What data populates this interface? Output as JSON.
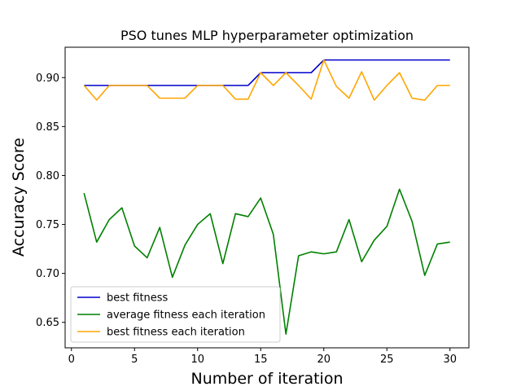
{
  "chart_data": {
    "type": "line",
    "title": "PSO tunes MLP hyperparameter optimization",
    "xlabel": "Number of iteration",
    "ylabel": "Accuracy Score",
    "xlim": [
      -0.5,
      31.5
    ],
    "ylim": [
      0.624,
      0.931
    ],
    "xticks": [
      0,
      5,
      10,
      15,
      20,
      25,
      30
    ],
    "yticks": [
      0.65,
      0.7,
      0.75,
      0.8,
      0.85,
      0.9
    ],
    "ytick_labels": [
      "0.65",
      "0.70",
      "0.75",
      "0.80",
      "0.85",
      "0.90"
    ],
    "legend_position": "lower-left",
    "grid": false,
    "x": [
      1,
      2,
      3,
      4,
      5,
      6,
      7,
      8,
      9,
      10,
      11,
      12,
      13,
      14,
      15,
      16,
      17,
      18,
      19,
      20,
      21,
      22,
      23,
      24,
      25,
      26,
      27,
      28,
      29,
      30
    ],
    "series": [
      {
        "name": "best fitness",
        "color": "#0000cc",
        "values": [
          0.892,
          0.892,
          0.892,
          0.892,
          0.892,
          0.892,
          0.892,
          0.892,
          0.892,
          0.892,
          0.892,
          0.892,
          0.892,
          0.892,
          0.905,
          0.905,
          0.905,
          0.905,
          0.905,
          0.918,
          0.918,
          0.918,
          0.918,
          0.918,
          0.918,
          0.918,
          0.918,
          0.918,
          0.918,
          0.918
        ]
      },
      {
        "name": "average fitness each iteration",
        "color": "#008000",
        "values": [
          0.782,
          0.732,
          0.755,
          0.767,
          0.728,
          0.716,
          0.747,
          0.696,
          0.729,
          0.75,
          0.761,
          0.71,
          0.761,
          0.758,
          0.777,
          0.74,
          0.638,
          0.718,
          0.722,
          0.72,
          0.722,
          0.755,
          0.712,
          0.734,
          0.748,
          0.786,
          0.753,
          0.698,
          0.73,
          0.732
        ]
      },
      {
        "name": "best fitness each iteration",
        "color": "#ffa500",
        "values": [
          0.892,
          0.877,
          0.892,
          0.892,
          0.892,
          0.892,
          0.879,
          0.879,
          0.879,
          0.892,
          0.892,
          0.892,
          0.878,
          0.878,
          0.905,
          0.892,
          0.905,
          0.892,
          0.878,
          0.918,
          0.891,
          0.879,
          0.906,
          0.877,
          0.892,
          0.905,
          0.879,
          0.877,
          0.892,
          0.892
        ]
      }
    ]
  }
}
